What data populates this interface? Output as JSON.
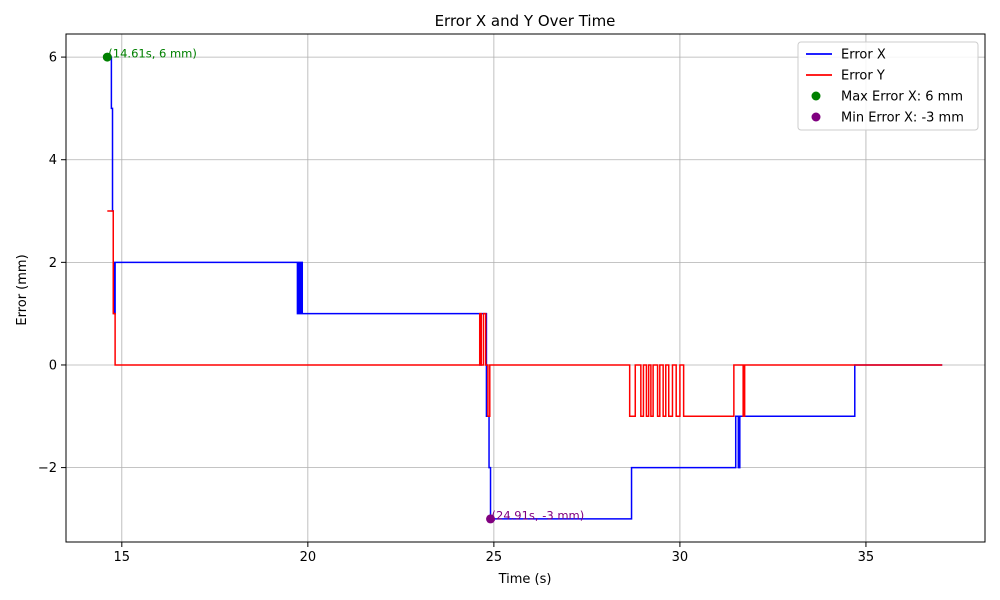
{
  "chart_data": {
    "type": "line",
    "title": "Error X and Y Over Time",
    "xlabel": "Time (s)",
    "ylabel": "Error (mm)",
    "xlim": [
      13.5,
      38.2
    ],
    "ylim": [
      -3.45,
      6.45
    ],
    "xticks": [
      15,
      20,
      25,
      30,
      35
    ],
    "xtick_labels": [
      "15",
      "20",
      "25",
      "30",
      "35"
    ],
    "yticks": [
      -2,
      0,
      2,
      4,
      6
    ],
    "ytick_labels": [
      "−2",
      "0",
      "2",
      "4",
      "6"
    ],
    "grid": true,
    "legend_position": "top-right",
    "series": [
      {
        "name": "Error X",
        "color": "#0000ff",
        "x": [
          14.61,
          14.72,
          14.72,
          14.75,
          14.75,
          14.77,
          14.77,
          14.8,
          14.8,
          14.82,
          14.82,
          14.85,
          14.85,
          19.72,
          19.72,
          19.76,
          19.76,
          19.79,
          19.79,
          19.82,
          19.82,
          19.85,
          19.85,
          24.62,
          24.62,
          24.66,
          24.66,
          24.8,
          24.8,
          24.87,
          24.87,
          24.91,
          24.91,
          28.7,
          28.7,
          31.5,
          31.5,
          31.57,
          31.57,
          31.61,
          31.61,
          31.68,
          31.68,
          34.7,
          34.7,
          37.05
        ],
        "y": [
          6,
          6,
          5,
          5,
          3,
          3,
          2,
          2,
          1,
          1,
          2,
          2,
          2,
          2,
          1,
          1,
          2,
          2,
          1,
          1,
          2,
          2,
          1,
          1,
          0,
          0,
          1,
          1,
          -1,
          -1,
          -2,
          -2,
          -3,
          -3,
          -2,
          -2,
          -1,
          -1,
          -2,
          -2,
          -1,
          -1,
          -1,
          -1,
          0,
          0
        ]
      },
      {
        "name": "Error Y",
        "color": "#ff0000",
        "x": [
          14.61,
          14.77,
          14.77,
          14.82,
          14.82,
          24.62,
          24.62,
          24.66,
          24.66,
          24.72,
          24.72,
          24.78,
          24.78,
          24.84,
          24.84,
          24.89,
          24.89,
          28.65,
          28.65,
          28.8,
          28.8,
          28.95,
          28.95,
          29.02,
          29.02,
          29.1,
          29.1,
          29.16,
          29.16,
          29.22,
          29.22,
          29.28,
          29.28,
          29.4,
          29.4,
          29.46,
          29.46,
          29.55,
          29.55,
          29.62,
          29.62,
          29.7,
          29.7,
          29.8,
          29.8,
          29.9,
          29.9,
          30.0,
          30.0,
          30.1,
          30.1,
          30.2,
          30.2,
          31.45,
          31.45,
          31.7,
          31.7,
          31.74,
          31.74,
          31.78,
          31.78,
          37.05
        ],
        "y": [
          3,
          3,
          1,
          1,
          0,
          0,
          1,
          1,
          0,
          0,
          1,
          1,
          0,
          0,
          -1,
          -1,
          0,
          0,
          -1,
          -1,
          0,
          0,
          -1,
          -1,
          0,
          0,
          -1,
          -1,
          0,
          0,
          -1,
          -1,
          0,
          0,
          -1,
          -1,
          0,
          0,
          -1,
          -1,
          0,
          0,
          -1,
          -1,
          0,
          0,
          -1,
          -1,
          0,
          0,
          -1,
          -1,
          -1,
          -1,
          0,
          0,
          -1,
          -1,
          0,
          0,
          0,
          0
        ]
      }
    ],
    "markers": [
      {
        "name": "Max Error X: 6 mm",
        "x": 14.61,
        "y": 6,
        "color": "#008000",
        "annotation": "(14.61s, 6 mm)"
      },
      {
        "name": "Min Error X: -3 mm",
        "x": 24.91,
        "y": -3,
        "color": "#800080",
        "annotation": "(24.91s, -3 mm)"
      }
    ]
  }
}
